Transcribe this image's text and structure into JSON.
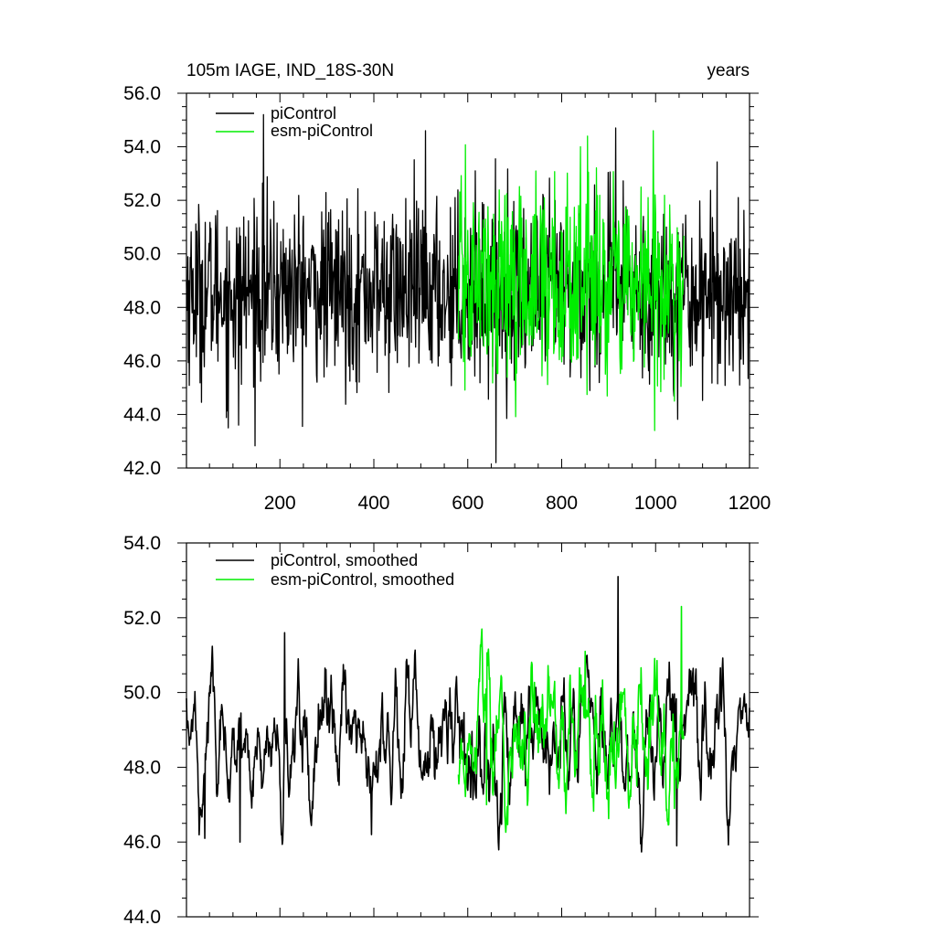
{
  "colors": {
    "piControl": "#000000",
    "esm_piControl": "#00ee00",
    "axes": "#000000",
    "background": "#ffffff"
  },
  "chart_data": [
    {
      "type": "line",
      "title": "105m IAGE, IND_18S-30N",
      "title_right": "years",
      "xlabel": "",
      "ylabel": "",
      "xlim": [
        1,
        1200
      ],
      "ylim": [
        42.0,
        56.0
      ],
      "x_tick_values": [
        200,
        400,
        600,
        800,
        1000,
        1200
      ],
      "x_tick_labels": [
        "200",
        "400",
        "600",
        "800",
        "1000",
        "1200"
      ],
      "y_tick_values": [
        42,
        44,
        46,
        48,
        50,
        52,
        54,
        56
      ],
      "y_tick_labels": [
        "42.0",
        "44.0",
        "46.0",
        "48.0",
        "50.0",
        "52.0",
        "54.0",
        "56.0"
      ],
      "grid": false,
      "legend_position": "top-left",
      "series": [
        {
          "name": "piControl",
          "x_range": [
            1,
            1200
          ],
          "mean": 48.6,
          "std": 1.65,
          "extremes": [
            [
              165,
              55.2
            ],
            [
              660,
              42.2
            ],
            [
              915,
              54.7
            ],
            [
              90,
              43.5
            ],
            [
              112,
              43.6
            ],
            [
              510,
              54.6
            ]
          ]
        },
        {
          "name": "esm-piControl",
          "x_range": [
            580,
            1060
          ],
          "mean": 48.9,
          "std": 1.8,
          "extremes": [
            [
              855,
              54.4
            ],
            [
              995,
              54.6
            ],
            [
              998,
              43.4
            ],
            [
              840,
              54.0
            ],
            [
              1040,
              44.5
            ]
          ]
        }
      ]
    },
    {
      "type": "line",
      "title": "",
      "xlabel": "",
      "ylabel": "",
      "xlim": [
        1,
        1200
      ],
      "ylim": [
        44.0,
        54.0
      ],
      "x_tick_values": [
        200,
        400,
        600,
        800,
        1000,
        1200
      ],
      "y_tick_values": [
        44,
        46,
        48,
        50,
        52,
        54
      ],
      "y_tick_labels": [
        "44.0",
        "46.0",
        "48.0",
        "50.0",
        "52.0",
        "54.0"
      ],
      "grid": false,
      "legend_position": "top-left",
      "series": [
        {
          "name": "piControl, smoothed",
          "x_range": [
            1,
            1200
          ],
          "mean": 48.7,
          "std": 0.95,
          "extremes": [
            [
              920,
              53.1
            ],
            [
              210,
              51.6
            ],
            [
              40,
              46.1
            ],
            [
              115,
              46.0
            ],
            [
              395,
              46.2
            ],
            [
              1045,
              45.9
            ]
          ]
        },
        {
          "name": "esm-piControl, smoothed",
          "x_range": [
            580,
            1060
          ],
          "mean": 48.8,
          "std": 1.0,
          "extremes": [
            [
              1055,
              52.3
            ],
            [
              850,
              51.1
            ],
            [
              640,
              47.0
            ],
            [
              1040,
              46.9
            ]
          ]
        }
      ]
    }
  ]
}
